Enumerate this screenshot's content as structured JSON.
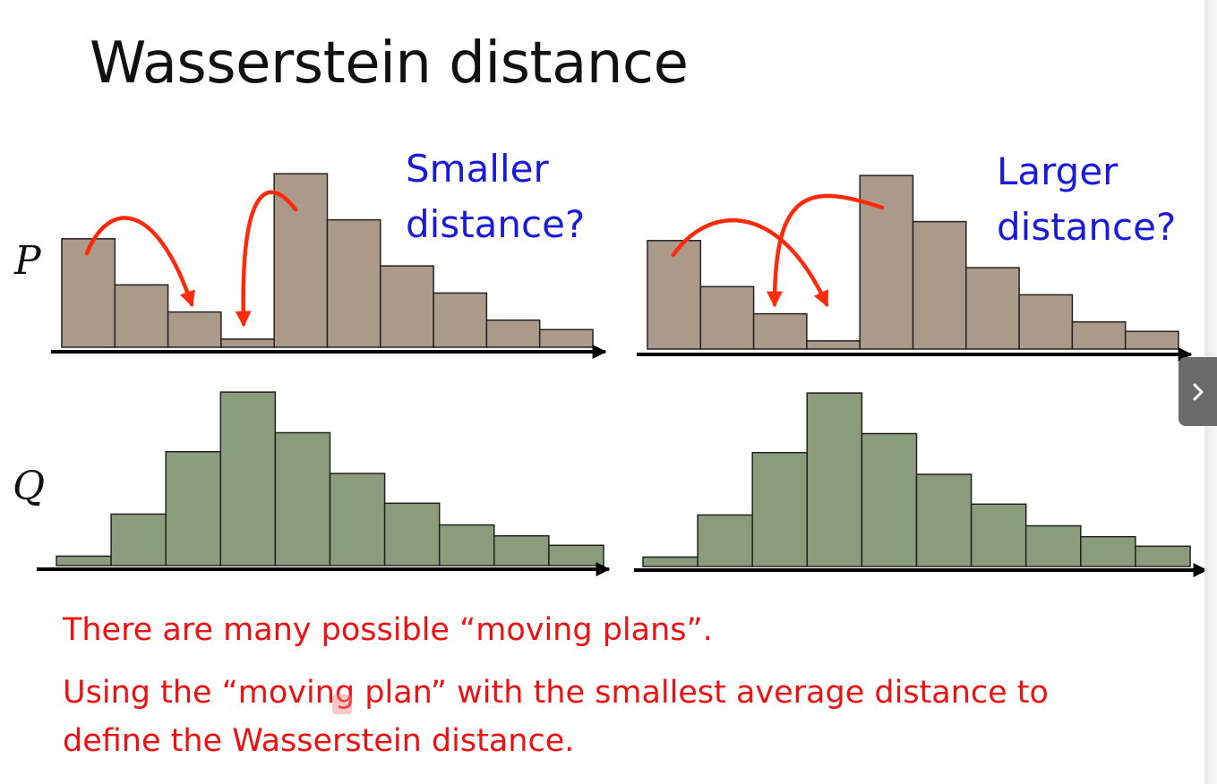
{
  "slide": {
    "title": "Wasserstein distance",
    "label_p": "P",
    "label_q": "Q",
    "left_question": [
      "Smaller",
      "distance?"
    ],
    "right_question": [
      "Larger",
      "distance?"
    ],
    "body_line1": "There are many possible “moving plans”.",
    "body_line2": "Using the “moving plan” with the smallest average distance to",
    "body_line3": "define the Wasserstein distance."
  },
  "controls": {
    "next_icon": "chevron-right-icon"
  },
  "colors": {
    "p_bar": "#ab9a89",
    "q_bar": "#8a9c7b",
    "arrow": "#ff2a0a",
    "question": "#1a1adb",
    "body": "#ee1111"
  },
  "chart_data": [
    {
      "type": "bar",
      "name": "P (left)",
      "values": [
        4,
        2.3,
        1.3,
        0.3,
        6.4,
        4.7,
        3,
        2,
        1,
        0.65
      ]
    },
    {
      "type": "bar",
      "name": "Q (left)",
      "values": [
        0.35,
        1.9,
        4.2,
        6.4,
        4.9,
        3.4,
        2.3,
        1.5,
        1.1,
        0.75
      ]
    },
    {
      "type": "bar",
      "name": "P (right)",
      "values": [
        4,
        2.3,
        1.3,
        0.3,
        6.4,
        4.7,
        3,
        2,
        1,
        0.65
      ]
    },
    {
      "type": "bar",
      "name": "Q (right)",
      "values": [
        0.35,
        1.9,
        4.2,
        6.4,
        4.9,
        3.4,
        2.3,
        1.5,
        1.1,
        0.75
      ]
    }
  ]
}
